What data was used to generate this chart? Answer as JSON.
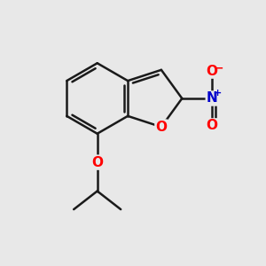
{
  "bg_color": "#e8e8e8",
  "bond_color": "#1a1a1a",
  "bond_width": 1.8,
  "atom_colors": {
    "O": "#ff0000",
    "N": "#0000cc",
    "C": "#1a1a1a"
  },
  "font_size_atom": 11,
  "font_size_charge": 8
}
